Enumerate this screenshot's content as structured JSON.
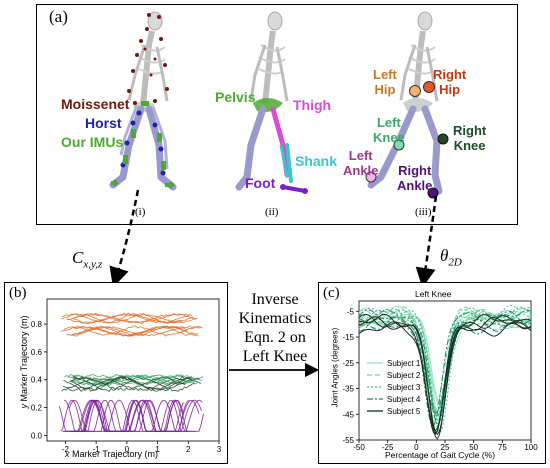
{
  "panel_a": {
    "label": "(a)",
    "sub_i": "(i)",
    "sub_ii": "(ii)",
    "sub_iii": "(iii)",
    "legend_i": [
      "Moissenet",
      "Horst",
      "Our IMUs"
    ],
    "segments_ii": [
      "Pelvis",
      "Thigh",
      "Shank",
      "Foot"
    ],
    "joints_iii": {
      "left_hip": [
        "Left",
        "Hip"
      ],
      "right_hip": [
        "Right",
        "Hip"
      ],
      "left_knee": [
        "Left",
        "Knee"
      ],
      "right_knee": [
        "Right",
        "Knee"
      ],
      "left_ankle": [
        "Left",
        "Ankle"
      ],
      "right_ankle": [
        "Right",
        "Ankle"
      ]
    }
  },
  "arrows": {
    "left_label_main": "C",
    "left_label_sub": "x,y,z",
    "right_label_main": "θ",
    "right_label_sub": "2D"
  },
  "center_text": [
    "Inverse",
    "Kinematics",
    "Eqn. 2 on",
    "Left Knee"
  ],
  "colors": {
    "moissenet": "#6b1a12",
    "horst": "#1f22a8",
    "our_imus": "#4caa2e",
    "pelvis": "#4caa2e",
    "thigh": "#d64fd6",
    "shank": "#3ec6c6",
    "foot": "#7a1fc9",
    "skeleton_limbs": "#9999cc",
    "orange": "#e0702a",
    "green": "#3aa86a",
    "dark_green": "#1e4a2a",
    "purple": "#7a1f9a"
  },
  "chart_data": [
    {
      "panel_label": "(b)",
      "type": "line",
      "xlabel_var": "x",
      "xlabel": "Marker Trajectory (m)",
      "ylabel_var": "y",
      "ylabel": "Marker Trajectory (m)",
      "x_ticks": [
        -2,
        -1,
        0,
        1,
        2,
        3
      ],
      "y_ticks": [
        0.0,
        0.2,
        0.4,
        0.6,
        0.8
      ],
      "xlim": [
        -2.6,
        3.0
      ],
      "ylim": [
        -0.04,
        0.98
      ],
      "bands": [
        {
          "color": "#e0702a",
          "center": 0.84,
          "amplitude": 0.035,
          "count": 6
        },
        {
          "color": "#e0702a",
          "center": 0.75,
          "amplitude": 0.035,
          "count": 6
        },
        {
          "color": "#3aa86a",
          "center": 0.4,
          "amplitude": 0.035,
          "count": 6
        },
        {
          "color": "#1e4a2a",
          "center": 0.37,
          "amplitude": 0.05,
          "count": 6
        },
        {
          "color": "#7a1f9a",
          "center": 0.08,
          "amplitude": 0.14,
          "count": 10
        }
      ]
    },
    {
      "panel_label": "(c)",
      "type": "line",
      "title": "Left Knee",
      "xlabel": "Percentage of Gait Cycle (%)",
      "ylabel": "Joint Angles (degrees)",
      "x_ticks": [
        -50,
        -25,
        0,
        25,
        50,
        75,
        100
      ],
      "y_ticks": [
        -5,
        -15,
        -25,
        -35,
        -45,
        -55
      ],
      "xlim": [
        -50,
        100
      ],
      "ylim": [
        -55,
        -1
      ],
      "series": [
        {
          "name": "Subject 1",
          "color": "#9fe0c0",
          "dash": "",
          "minimum": -42,
          "base": -7
        },
        {
          "name": "Subject 2",
          "color": "#6fd6a8",
          "dash": "5,3",
          "minimum": -44,
          "base": -8
        },
        {
          "name": "Subject 3",
          "color": "#3fc08a",
          "dash": "2,2",
          "minimum": -47,
          "base": -6
        },
        {
          "name": "Subject 4",
          "color": "#1f8a5e",
          "dash": "6,2,2,2",
          "minimum": -49,
          "base": -9
        },
        {
          "name": "Subject 5",
          "color": "#1a2e24",
          "dash": "",
          "minimum": -52,
          "base": -10
        }
      ]
    }
  ]
}
